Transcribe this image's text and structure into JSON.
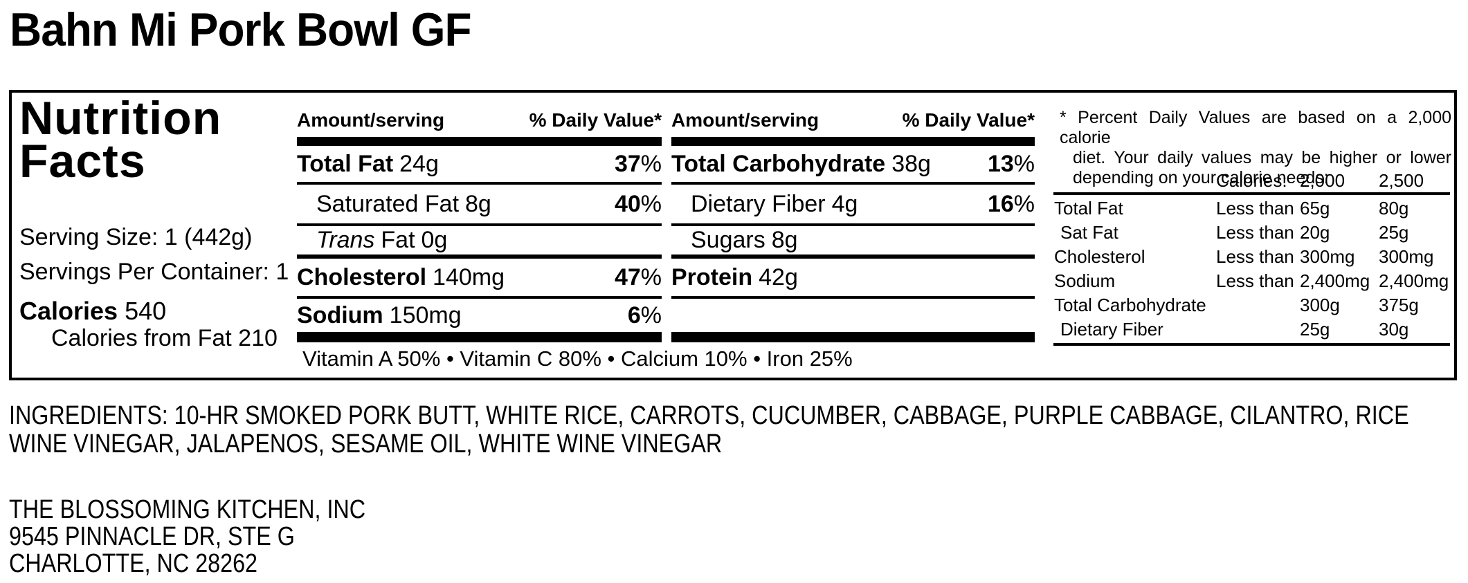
{
  "title": "Bahn Mi Pork Bowl GF",
  "panel": {
    "heading": "Nutrition Facts",
    "serving_size": "Serving Size: 1 (442g)",
    "servings_per_container": "Servings Per Container: 1",
    "calories_label": "Calories",
    "calories_value": "540",
    "calories_from_fat": "Calories from Fat 210",
    "percent_sign": "%",
    "column_header": {
      "amount": "Amount/serving",
      "daily_value": "% Daily Value*"
    },
    "col1_rows": [
      {
        "label": "Total Fat",
        "amount": "24g",
        "dv": "37"
      },
      {
        "label": "Saturated Fat",
        "amount": "8g",
        "dv": "40"
      },
      {
        "label_italic": "Trans",
        "label": "Fat",
        "amount": "0g",
        "dv": ""
      },
      {
        "label": "Cholesterol",
        "amount": "140mg",
        "dv": "47"
      },
      {
        "label": "Sodium",
        "amount": "150mg",
        "dv": "6"
      }
    ],
    "col2_rows": [
      {
        "label": "Total Carbohydrate",
        "amount": "38g",
        "dv": "13"
      },
      {
        "label": "Dietary Fiber",
        "amount": "4g",
        "dv": "16"
      },
      {
        "label": "Sugars",
        "amount": "8g",
        "dv": ""
      },
      {
        "label": "Protein",
        "amount": "42g",
        "dv": ""
      }
    ],
    "vitamins_line": "Vitamin A 50% • Vitamin C 80% • Calcium 10% • Iron 25%",
    "footnote_lines": [
      "* Percent Daily Values are based on a 2,000 calorie",
      "diet. Your daily values may be higher or lower",
      "depending on your calorie needs:"
    ],
    "dv_table": {
      "calories_label": "Calories:",
      "calories_2000": "2,000",
      "calories_2500": "2,500",
      "rows": [
        {
          "label": "Total Fat",
          "qualifier": "Less than",
          "v2000": "65g",
          "v2500": "80g"
        },
        {
          "label": "Sat Fat",
          "qualifier": "Less than",
          "v2000": "20g",
          "v2500": "25g"
        },
        {
          "label": "Cholesterol",
          "qualifier": "Less than",
          "v2000": "300mg",
          "v2500": "300mg"
        },
        {
          "label": "Sodium",
          "qualifier": "Less than",
          "v2000": "2,400mg",
          "v2500": "2,400mg"
        },
        {
          "label": "Total Carbohydrate",
          "qualifier": "",
          "v2000": "300g",
          "v2500": "375g"
        },
        {
          "label": "Dietary Fiber",
          "qualifier": "",
          "v2000": "25g",
          "v2500": "30g"
        }
      ]
    }
  },
  "ingredients_lines": [
    "INGREDIENTS: 10-HR SMOKED PORK BUTT, WHITE RICE, CARROTS, CUCUMBER, CABBAGE, PURPLE CABBAGE, CILANTRO, RICE",
    "WINE VINEGAR, JALAPENOS, SESAME OIL, WHITE WINE VINEGAR"
  ],
  "address_lines": [
    "THE BLOSSOMING KITCHEN, INC",
    "9545 PINNACLE DR, STE G",
    "CHARLOTTE, NC 28262"
  ]
}
